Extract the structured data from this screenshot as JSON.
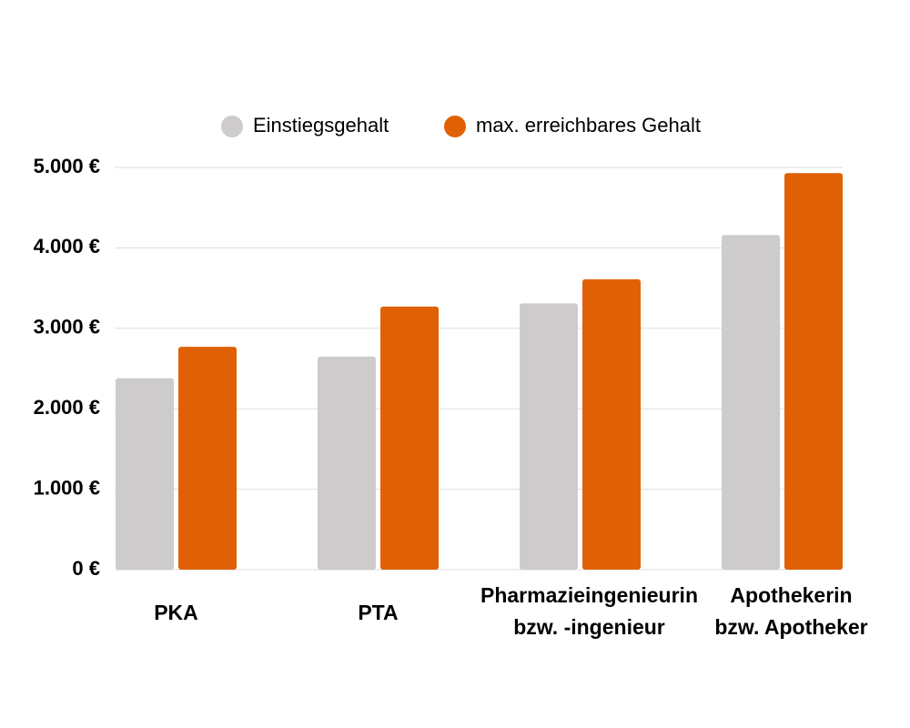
{
  "chart_data": {
    "type": "bar",
    "categories": [
      [
        "PKA"
      ],
      [
        "PTA"
      ],
      [
        "Pharmazieingenieurin",
        "bzw. -ingenieur"
      ],
      [
        "Apothekerin",
        "bzw. Apotheker"
      ]
    ],
    "series": [
      {
        "name": "Einstiegsgehalt",
        "color": "#cdcbcb",
        "values": [
          2380,
          2650,
          3310,
          4160
        ]
      },
      {
        "name": "max. erreichbares Gehalt",
        "color": "#e06005",
        "values": [
          2770,
          3270,
          3610,
          4930
        ]
      }
    ],
    "ylim": [
      0,
      5000
    ],
    "yticks": [
      {
        "value": 0,
        "label": "0 €"
      },
      {
        "value": 1000,
        "label": "1.000 €"
      },
      {
        "value": 2000,
        "label": "2.000 €"
      },
      {
        "value": 3000,
        "label": "3.000 €"
      },
      {
        "value": 4000,
        "label": "4.000 €"
      },
      {
        "value": 5000,
        "label": "5.000 €"
      }
    ],
    "grid": true
  }
}
